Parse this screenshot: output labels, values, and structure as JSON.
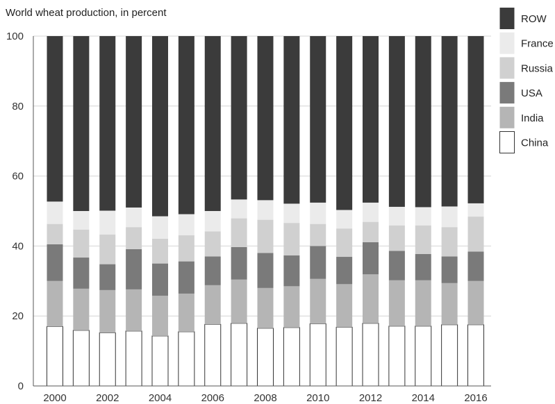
{
  "chart_data": {
    "type": "bar",
    "stacked": true,
    "title": "World wheat production, in percent",
    "xlabel": "",
    "ylabel": "",
    "ylim": [
      0,
      100
    ],
    "yticks": [
      0,
      20,
      40,
      60,
      80,
      100
    ],
    "xtick_labels": [
      "2000",
      "2002",
      "2004",
      "2006",
      "2008",
      "2010",
      "2012",
      "2014",
      "2016"
    ],
    "grid": true,
    "legend_position": "top-right",
    "categories": [
      "2000",
      "2001",
      "2002",
      "2003",
      "2004",
      "2005",
      "2006",
      "2007",
      "2008",
      "2009",
      "2010",
      "2011",
      "2012",
      "2013",
      "2014",
      "2015",
      "2016"
    ],
    "series": [
      {
        "name": "China",
        "color": "#ffffff",
        "values": [
          17.0,
          15.9,
          15.2,
          15.7,
          14.3,
          15.5,
          17.6,
          17.9,
          16.5,
          16.7,
          17.8,
          16.8,
          17.9,
          17.1,
          17.1,
          17.5,
          17.5
        ]
      },
      {
        "name": "India",
        "color": "#b5b5b5",
        "values": [
          13.0,
          11.9,
          12.2,
          11.9,
          11.5,
          10.9,
          11.2,
          12.5,
          11.5,
          11.8,
          12.8,
          12.3,
          14.0,
          13.1,
          13.1,
          11.9,
          12.5
        ]
      },
      {
        "name": "USA",
        "color": "#7a7a7a",
        "values": [
          10.5,
          8.9,
          7.4,
          11.5,
          9.2,
          9.2,
          8.2,
          9.3,
          10.0,
          8.8,
          9.4,
          7.8,
          9.2,
          8.4,
          7.5,
          7.6,
          8.4
        ]
      },
      {
        "name": "Russia",
        "color": "#d0d0d0",
        "values": [
          5.8,
          8.0,
          8.5,
          6.3,
          7.1,
          7.5,
          7.2,
          8.2,
          9.5,
          9.3,
          6.3,
          8.1,
          5.8,
          7.3,
          8.2,
          8.4,
          10.0
        ]
      },
      {
        "name": "France",
        "color": "#ebebeb",
        "values": [
          6.4,
          5.3,
          6.8,
          5.6,
          6.4,
          6.0,
          5.8,
          5.4,
          5.6,
          5.5,
          6.1,
          5.3,
          5.5,
          5.3,
          5.2,
          5.9,
          3.8
        ]
      },
      {
        "name": "ROW",
        "color": "#3b3b3b",
        "values": [
          47.3,
          50.0,
          49.9,
          49.0,
          51.5,
          50.9,
          50.0,
          46.7,
          46.9,
          47.9,
          47.6,
          49.7,
          47.6,
          48.8,
          48.9,
          48.7,
          47.8
        ]
      }
    ],
    "legend_order": [
      "ROW",
      "France",
      "Russia",
      "USA",
      "India",
      "China"
    ]
  }
}
